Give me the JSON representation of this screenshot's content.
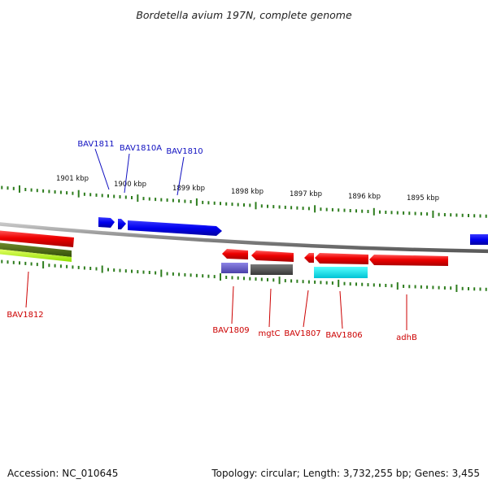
{
  "title": "Bordetella avium 197N, complete genome",
  "footer": {
    "accession": "Accession: NC_010645",
    "summary": "Topology: circular; Length: 3,732,255 bp; Genes: 3,455"
  },
  "colors": {
    "forward_label": "#1010c0",
    "reverse_label": "#cc0000",
    "ticks": "#2e7d1e",
    "backbone": "#8a8a8a"
  },
  "ticks": [
    {
      "kbp": 1901,
      "label": "1901 kbp"
    },
    {
      "kbp": 1900,
      "label": "1900 kbp"
    },
    {
      "kbp": 1899,
      "label": "1899 kbp"
    },
    {
      "kbp": 1898,
      "label": "1898 kbp"
    },
    {
      "kbp": 1897,
      "label": "1897 kbp"
    },
    {
      "kbp": 1896,
      "label": "1896 kbp"
    },
    {
      "kbp": 1895,
      "label": "1895 kbp"
    }
  ],
  "genes": [
    {
      "name": "BAV1811",
      "strand": "forward"
    },
    {
      "name": "BAV1810A",
      "strand": "forward"
    },
    {
      "name": "BAV1810",
      "strand": "forward"
    },
    {
      "name": "BAV1812",
      "strand": "reverse"
    },
    {
      "name": "BAV1809",
      "strand": "reverse"
    },
    {
      "name": "mgtC",
      "strand": "reverse"
    },
    {
      "name": "BAV1807",
      "strand": "reverse"
    },
    {
      "name": "BAV1806",
      "strand": "reverse"
    },
    {
      "name": "adhB",
      "strand": "reverse"
    }
  ]
}
